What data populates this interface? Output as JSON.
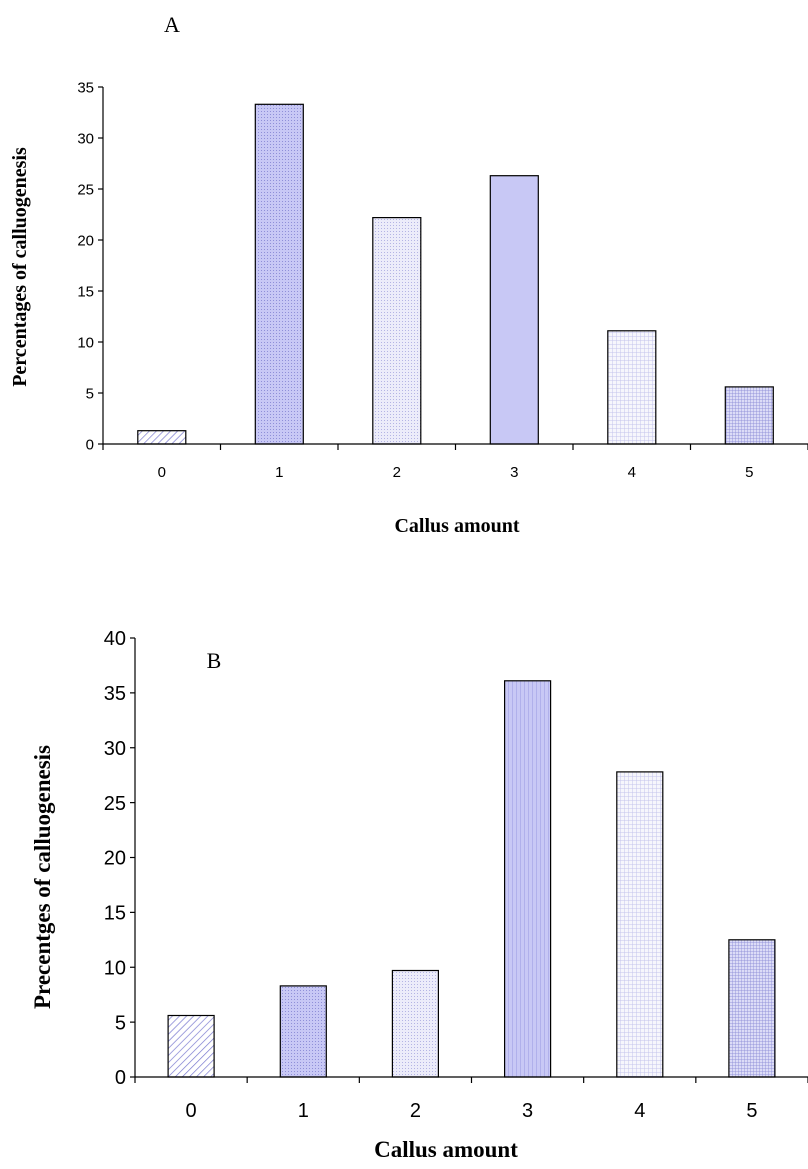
{
  "chart_data": [
    {
      "type": "bar",
      "panel_label": "A",
      "categories": [
        "0",
        "1",
        "2",
        "3",
        "4",
        "5"
      ],
      "values": [
        1.3,
        33.3,
        22.2,
        26.3,
        11.1,
        5.6
      ],
      "xlabel": "Callus amount",
      "ylabel": "Percentages of calluogenesis",
      "ylim": [
        0,
        35
      ],
      "yticks": [
        "0",
        "5",
        "10",
        "15",
        "20",
        "25",
        "30",
        "35"
      ],
      "grid": false,
      "legend": "none"
    },
    {
      "type": "bar",
      "panel_label": "B",
      "categories": [
        "0",
        "1",
        "2",
        "3",
        "4",
        "5"
      ],
      "values": [
        5.6,
        8.3,
        9.7,
        36.1,
        27.8,
        12.5
      ],
      "xlabel": "Callus amount",
      "ylabel": "Precentges of calluogenesis",
      "ylim": [
        0,
        40
      ],
      "yticks": [
        "0",
        "5",
        "10",
        "15",
        "20",
        "25",
        "30",
        "35",
        "40"
      ],
      "grid": false,
      "legend": "none"
    }
  ],
  "colors": {
    "accent_fill": "#c8c8f5",
    "light_fill": "#ececfa",
    "pale_fill": "#f6f6fc",
    "pattern_line": "#7a7ad0",
    "stroke": "#000000"
  }
}
